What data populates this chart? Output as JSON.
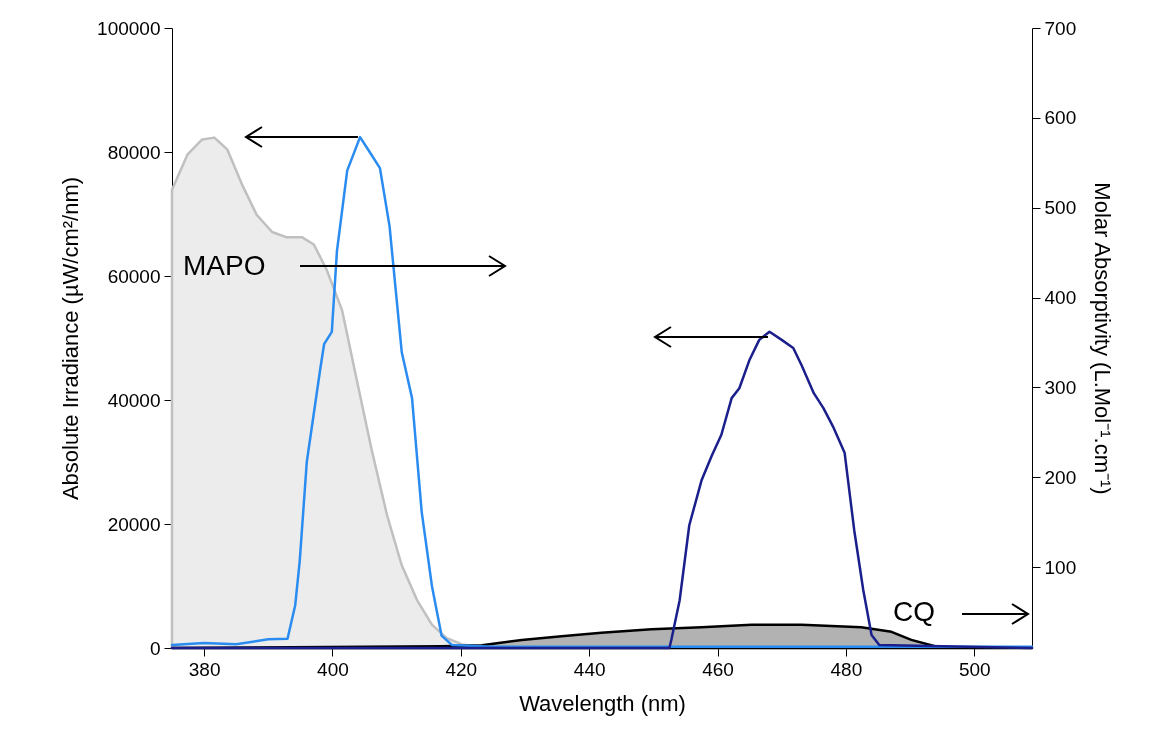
{
  "chart_data": {
    "type": "line",
    "xlabel": "Wavelength (nm)",
    "ylabel": "Absolute Irradiance (µW/cm²/nm)",
    "y2label": "Molar Absorptivity (L.Mol⁻¹.cm⁻¹)",
    "xlim": [
      375,
      509
    ],
    "xticks": [
      380,
      400,
      420,
      440,
      460,
      480,
      500
    ],
    "ylim": [
      0,
      100000
    ],
    "yticks": [
      0,
      20000,
      40000,
      60000,
      80000,
      100000
    ],
    "y2lim": [
      10,
      700
    ],
    "y2ticks": [
      100,
      200,
      300,
      400,
      500,
      600,
      700
    ],
    "series": [
      {
        "type": "area",
        "axis": "y2",
        "color": "#c0c0c0",
        "x": [
          375,
          377.4,
          379.7,
          381.6,
          383.6,
          385.9,
          388.2,
          390.6,
          392.9,
          395.3,
          397.1,
          399.1,
          401.5,
          403.8,
          406.1,
          408.5,
          410.8,
          413.2,
          415.5,
          417.8,
          420.2,
          423.3,
          509
        ],
        "values": [
          520,
          559,
          576,
          578,
          565,
          526,
          492,
          473,
          467,
          467,
          459,
          431,
          386,
          308,
          231,
          158,
          102,
          63,
          36,
          21,
          14,
          11,
          10
        ]
      },
      {
        "type": "area",
        "axis": "y2",
        "color": "#000000",
        "x": [
          375,
          417,
          423.3,
          429.5,
          435.7,
          441.9,
          449.7,
          457.5,
          465.3,
          473.1,
          482.4,
          487.1,
          490.2,
          494.9,
          509
        ],
        "values": [
          10,
          12,
          13,
          19,
          23,
          27,
          31,
          33,
          36,
          36,
          33,
          28,
          19,
          10,
          10
        ]
      },
      {
        "color": "#2a8cf0",
        "x": [
          375,
          380,
          385,
          390,
          393,
          394.2,
          394.9,
          396.0,
          398.1,
          398.7,
          399.9,
          400.7,
          402.3,
          404.3,
          405.8,
          407.4,
          408.9,
          410.8,
          412.4,
          413.9,
          415.5,
          417.0,
          418.6,
          425,
          509
        ],
        "values": [
          500,
          800,
          600,
          1400,
          1500,
          6900,
          14000,
          30000,
          45000,
          49000,
          51000,
          64000,
          77000,
          82400,
          80000,
          77400,
          68000,
          47700,
          40300,
          22000,
          10000,
          2000,
          500,
          200,
          200
        ]
      },
      {
        "color": "#1a1f8c",
        "x": [
          375,
          452.5,
          452.8,
          454.1,
          455.6,
          457.5,
          459.1,
          460.6,
          462.2,
          463.4,
          465.0,
          466.5,
          468.1,
          470.0,
          471.8,
          473.1,
          475.0,
          476.5,
          478.1,
          479.8,
          481.3,
          482.7,
          484.0,
          485.2,
          509
        ],
        "values": [
          0,
          0,
          1300,
          7700,
          19800,
          27000,
          31000,
          34400,
          40300,
          41900,
          46500,
          49700,
          51000,
          49700,
          48400,
          45600,
          41100,
          38700,
          35500,
          31500,
          19000,
          9400,
          2100,
          500,
          0
        ]
      }
    ],
    "annotations": [
      "MAPO",
      "CQ"
    ]
  }
}
